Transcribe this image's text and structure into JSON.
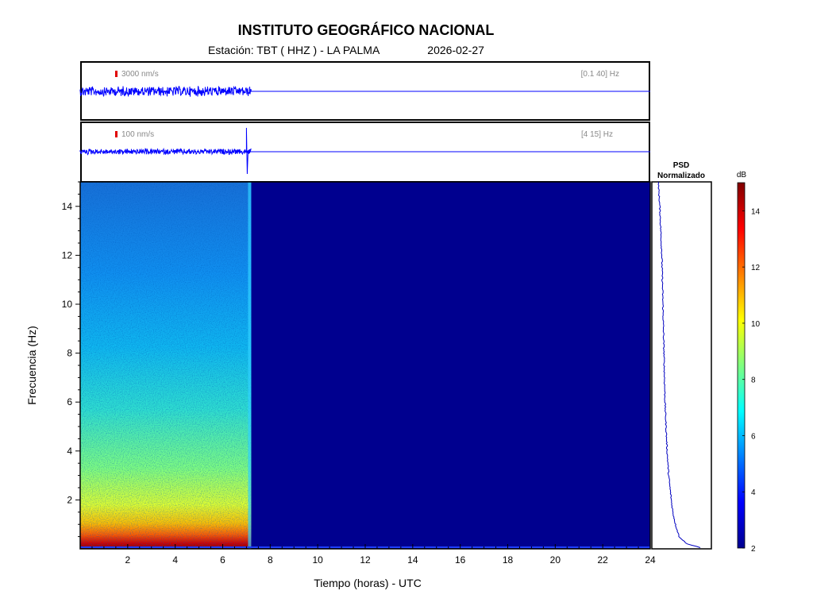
{
  "header": {
    "title": "INSTITUTO GEOGRÁFICO NACIONAL",
    "station": "Estación:  TBT ( HHZ ) - LA PALMA",
    "date": "2026-02-27"
  },
  "traces": [
    {
      "scale_label": "3000 nm/s",
      "band_label": "[0.1 40] Hz",
      "active_until_hours": 7.2
    },
    {
      "scale_label": "100 nm/s",
      "band_label": "[4 15] Hz",
      "active_until_hours": 7.2,
      "spike_at_hours": 7.0
    }
  ],
  "psd": {
    "title_line1": "PSD",
    "title_line2": "Normalizado"
  },
  "colorbar": {
    "label": "dB",
    "min": 2,
    "max": 15,
    "ticks": [
      "2",
      "4",
      "6",
      "8",
      "10",
      "12",
      "14"
    ]
  },
  "colors": {
    "trace": "#0000ff",
    "empty_spectrogram": "#00008f",
    "axis": "#000000"
  },
  "chart_data": {
    "type": "heatmap",
    "xlabel": "Tiempo (horas) - UTC",
    "ylabel": "Frecuencia  (Hz)",
    "xlim": [
      0,
      24
    ],
    "ylim": [
      0,
      15
    ],
    "xticks": [
      "2",
      "4",
      "6",
      "8",
      "10",
      "12",
      "14",
      "16",
      "18",
      "20",
      "22",
      "24"
    ],
    "yticks": [
      "2",
      "4",
      "6",
      "8",
      "10",
      "12",
      "14"
    ],
    "data_end_hours": 7.2,
    "psd_profile": {
      "freq_hz": [
        0,
        0.2,
        0.5,
        1,
        1.5,
        2,
        3,
        4,
        5,
        6,
        7,
        8,
        9,
        10,
        11,
        12,
        13,
        14,
        15
      ],
      "normalized": [
        0.9,
        0.55,
        0.4,
        0.33,
        0.28,
        0.25,
        0.2,
        0.17,
        0.15,
        0.13,
        0.12,
        0.11,
        0.1,
        0.09,
        0.08,
        0.07,
        0.05,
        0.03,
        0.0
      ]
    }
  }
}
